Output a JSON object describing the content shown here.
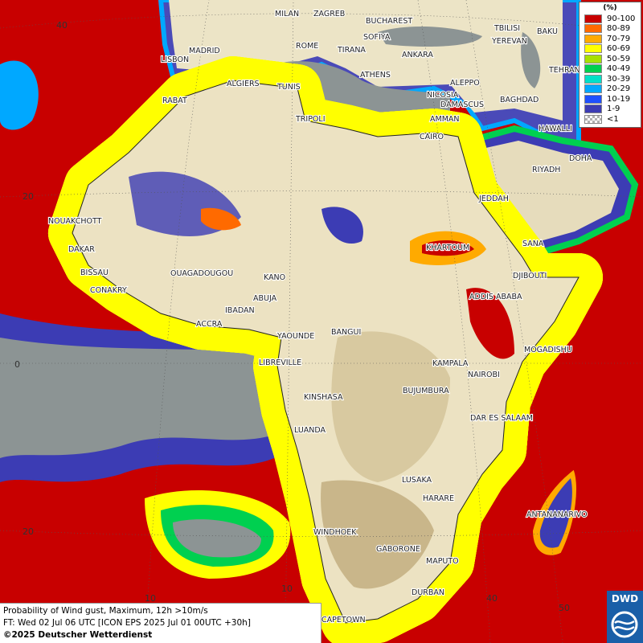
{
  "legend": {
    "unit": "(%)",
    "entries": [
      {
        "label": "90-100",
        "color": "#c80000"
      },
      {
        "label": "80-89",
        "color": "#ff6a00"
      },
      {
        "label": "70-79",
        "color": "#ffaa00"
      },
      {
        "label": "60-69",
        "color": "#ffff00"
      },
      {
        "label": "50-59",
        "color": "#a8e000"
      },
      {
        "label": "40-49",
        "color": "#00d050"
      },
      {
        "label": "30-39",
        "color": "#00e0c8"
      },
      {
        "label": "20-29",
        "color": "#00a8ff"
      },
      {
        "label": "10-19",
        "color": "#1e50ff"
      },
      {
        "label": "1-9",
        "color": "#3c3cb4"
      },
      {
        "label": "<1",
        "color": "#b0b0b0"
      }
    ]
  },
  "cities": [
    "MILAN",
    "ZAGREB",
    "BUCHAREST",
    "TBILISI",
    "BAKU",
    "MADRID",
    "ROME",
    "SOFIYA",
    "YEREVAN",
    "LISBON",
    "TIRANA",
    "ANKARA",
    "TEHRAN",
    "ALGIERS",
    "TUNIS",
    "ATHENS",
    "ALEPPO",
    "RABAT",
    "NICOSIA",
    "BAGHDAD",
    "DAMASCUS",
    "TRIPOLI",
    "AMMAN",
    "HAWALLI",
    "CAIRO",
    "DOHA",
    "RIYADH",
    "JEDDAH",
    "NOUAKCHOTT",
    "KHARTOUM",
    "SANA",
    "DAKAR",
    "BISSAU",
    "DJIBOUTI",
    "OUAGADOUGOU",
    "KANO",
    "CONAKRY",
    "ADDIS ABABA",
    "ABUJA",
    "IBADAN",
    "ACCRA",
    "YAOUNDE",
    "BANGUI",
    "MOGADISHU",
    "LIBREVILLE",
    "KAMPALA",
    "NAIROBI",
    "BUJUMBURA",
    "KINSHASA",
    "DAR ES SALAAM",
    "LUANDA",
    "LUSAKA",
    "HARARE",
    "ANTANANARIVO",
    "WINDHOEK",
    "GABORONE",
    "MAPUTO",
    "DURBAN",
    "CAPETOWN"
  ],
  "grid_labels": [
    "40",
    "20",
    "0",
    "20",
    "10",
    "10",
    "40",
    "50"
  ],
  "footer": {
    "lines": [
      "Probability of Wind gust, Maximum, 12h >10m/s",
      "FT: Wed 02 Jul 06 UTC [ICON EPS 2025 Jul 01 00UTC +30h]",
      "©2025 Deutscher Wetterdienst"
    ]
  },
  "logo": "DWD"
}
